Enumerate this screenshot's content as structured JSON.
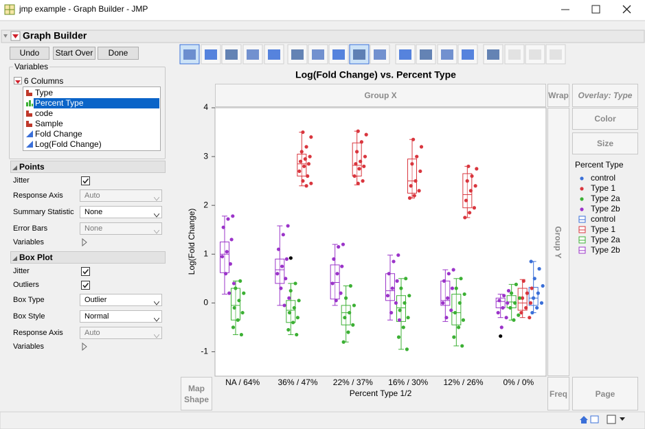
{
  "window": {
    "title": "jmp example - Graph Builder - JMP"
  },
  "header": {
    "title": "Graph Builder"
  },
  "buttons": [
    "Undo",
    "Start Over",
    "Done"
  ],
  "variables": {
    "title": "Variables",
    "count_label": "6 Columns",
    "selected": 1,
    "columns": [
      {
        "name": "Type",
        "kind": "nominal"
      },
      {
        "name": "Percent Type",
        "kind": "ordinal"
      },
      {
        "name": "code",
        "kind": "nominal"
      },
      {
        "name": "Sample",
        "kind": "nominal"
      },
      {
        "name": "Fold Change",
        "kind": "continuous"
      },
      {
        "name": "Log(Fold Change)",
        "kind": "continuous"
      }
    ]
  },
  "points_panel": {
    "title": "Points",
    "rows": [
      {
        "label": "Jitter",
        "checked": true
      },
      {
        "label": "Response Axis",
        "value": "Auto",
        "enabled": false
      },
      {
        "label": "Summary Statistic",
        "value": "None",
        "enabled": true
      },
      {
        "label": "Error Bars",
        "value": "None",
        "enabled": false
      },
      {
        "label": "Variables",
        "expander": true
      }
    ]
  },
  "box_panel": {
    "title": "Box Plot",
    "rows": [
      {
        "label": "Jitter",
        "checked": true
      },
      {
        "label": "Outliers",
        "checked": true
      },
      {
        "label": "Box Type",
        "value": "Outlier",
        "enabled": true
      },
      {
        "label": "Box Style",
        "value": "Normal",
        "enabled": true
      },
      {
        "label": "Response Axis",
        "value": "Auto",
        "enabled": false
      },
      {
        "label": "Variables",
        "expander": true
      }
    ]
  },
  "drop_zones": {
    "group_x": "Group X",
    "wrap": "Wrap",
    "overlay": "Overlay: Type",
    "color": "Color",
    "size": "Size",
    "group_y": "Group Y",
    "map_shape": "Map Shape",
    "freq": "Freq",
    "page": "Page"
  },
  "chart_data": {
    "type": "box",
    "title": "Log(Fold Change) vs. Percent Type",
    "x_label": "Percent Type 1/2",
    "y_label": "Log(Fold Change)",
    "categories": [
      "NA / 64%",
      "36% / 47%",
      "22% / 37%",
      "16% / 30%",
      "12% / 26%",
      "0% / 0%"
    ],
    "ylim": [
      -1.5,
      4
    ],
    "yticks": [
      -1,
      0,
      1,
      2,
      3,
      4
    ],
    "legend_title": "Percent Type",
    "outlier_color": "#000000",
    "series": [
      {
        "name": "control",
        "color": "#3a6fd8",
        "boxes": [
          null,
          null,
          null,
          null,
          null,
          [
            -0.2,
            -0.05,
            0.1,
            0.32,
            0.85
          ]
        ],
        "points": [
          [],
          [],
          [],
          [],
          [],
          [
            0.85,
            0.7,
            0.5,
            0.35,
            0.2,
            0.1,
            0.0,
            -0.1,
            -0.2
          ]
        ],
        "outliers": [
          [],
          [],
          [],
          [],
          [],
          []
        ]
      },
      {
        "name": "Type 1",
        "color": "#d9363e",
        "boxes": [
          null,
          [
            2.4,
            2.6,
            2.85,
            3.05,
            3.5
          ],
          [
            2.42,
            2.6,
            2.82,
            3.28,
            3.52
          ],
          [
            2.15,
            2.25,
            2.5,
            2.95,
            3.35
          ],
          [
            1.75,
            1.95,
            2.22,
            2.65,
            2.8
          ],
          [
            -0.3,
            -0.15,
            0.0,
            0.3,
            0.48
          ]
        ],
        "points": [
          [],
          [
            3.5,
            3.4,
            3.2,
            3.1,
            3.0,
            2.95,
            2.9,
            2.85,
            2.8,
            2.7,
            2.6,
            2.5,
            2.45,
            2.4
          ],
          [
            3.52,
            3.45,
            3.3,
            3.1,
            3.0,
            2.9,
            2.85,
            2.8,
            2.75,
            2.6,
            2.5,
            2.45
          ],
          [
            3.35,
            3.2,
            3.0,
            2.85,
            2.7,
            2.5,
            2.4,
            2.3,
            2.2,
            2.15
          ],
          [
            2.8,
            2.75,
            2.6,
            2.5,
            2.4,
            2.3,
            2.1,
            1.95,
            1.85,
            1.75
          ],
          [
            0.45,
            0.3,
            0.2,
            0.1,
            0.0,
            -0.1,
            -0.2,
            -0.3
          ]
        ],
        "outliers": [
          [],
          [],
          [],
          [],
          [],
          []
        ]
      },
      {
        "name": "Type 2a",
        "color": "#3cb034",
        "boxes": [
          [
            -0.65,
            -0.35,
            -0.05,
            0.3,
            0.45
          ],
          [
            -0.65,
            -0.4,
            -0.15,
            0.05,
            0.4
          ],
          [
            -0.8,
            -0.45,
            -0.2,
            -0.05,
            0.35
          ],
          [
            -0.95,
            -0.38,
            -0.1,
            0.15,
            0.5
          ],
          [
            -0.88,
            -0.45,
            -0.2,
            0.18,
            0.5
          ],
          [
            -0.35,
            -0.1,
            0.02,
            0.15,
            0.38
          ]
        ],
        "points": [
          [
            0.45,
            0.3,
            0.2,
            0.05,
            -0.1,
            -0.2,
            -0.35,
            -0.5,
            -0.65
          ],
          [
            0.4,
            0.25,
            0.05,
            -0.1,
            -0.2,
            -0.3,
            -0.4,
            -0.55,
            -0.65
          ],
          [
            0.35,
            0.1,
            -0.05,
            -0.2,
            -0.3,
            -0.45,
            -0.6,
            -0.8
          ],
          [
            0.5,
            0.3,
            0.15,
            0.0,
            -0.15,
            -0.3,
            -0.5,
            -0.7,
            -0.95
          ],
          [
            0.5,
            0.3,
            0.18,
            0.0,
            -0.2,
            -0.35,
            -0.5,
            -0.7,
            -0.88
          ],
          [
            0.38,
            0.2,
            0.1,
            0.0,
            -0.1,
            -0.25,
            -0.35
          ]
        ],
        "outliers": [
          [],
          [
            0.92
          ],
          [],
          [],
          [],
          []
        ]
      },
      {
        "name": "Type 2b",
        "color": "#9b34c9",
        "boxes": [
          [
            0.18,
            0.62,
            1.0,
            1.25,
            1.78
          ],
          [
            -0.05,
            0.4,
            0.68,
            0.9,
            1.58
          ],
          [
            -0.05,
            0.08,
            0.42,
            0.78,
            1.2
          ],
          [
            -0.35,
            0.05,
            0.25,
            0.6,
            0.98
          ],
          [
            -0.38,
            -0.05,
            0.05,
            0.45,
            0.68
          ],
          [
            -0.3,
            -0.1,
            0.03,
            0.1,
            0.18
          ]
        ],
        "points": [
          [
            1.78,
            1.72,
            1.55,
            1.3,
            1.05,
            0.95,
            0.8,
            0.6,
            0.4,
            0.2
          ],
          [
            1.58,
            1.4,
            1.1,
            0.9,
            0.75,
            0.6,
            0.5,
            0.3,
            0.1,
            -0.05
          ],
          [
            1.2,
            1.15,
            0.9,
            0.75,
            0.6,
            0.4,
            0.2,
            0.05
          ],
          [
            0.98,
            0.85,
            0.6,
            0.45,
            0.3,
            0.15,
            0.0,
            -0.2,
            -0.35
          ],
          [
            0.68,
            0.6,
            0.45,
            0.3,
            0.1,
            0.0,
            -0.15,
            -0.3
          ],
          [
            0.25,
            0.15,
            0.05,
            0.0,
            -0.1,
            -0.2,
            -0.3,
            -0.5
          ]
        ],
        "outliers": [
          [],
          [],
          [],
          [],
          [],
          [
            -0.68
          ]
        ]
      }
    ]
  }
}
